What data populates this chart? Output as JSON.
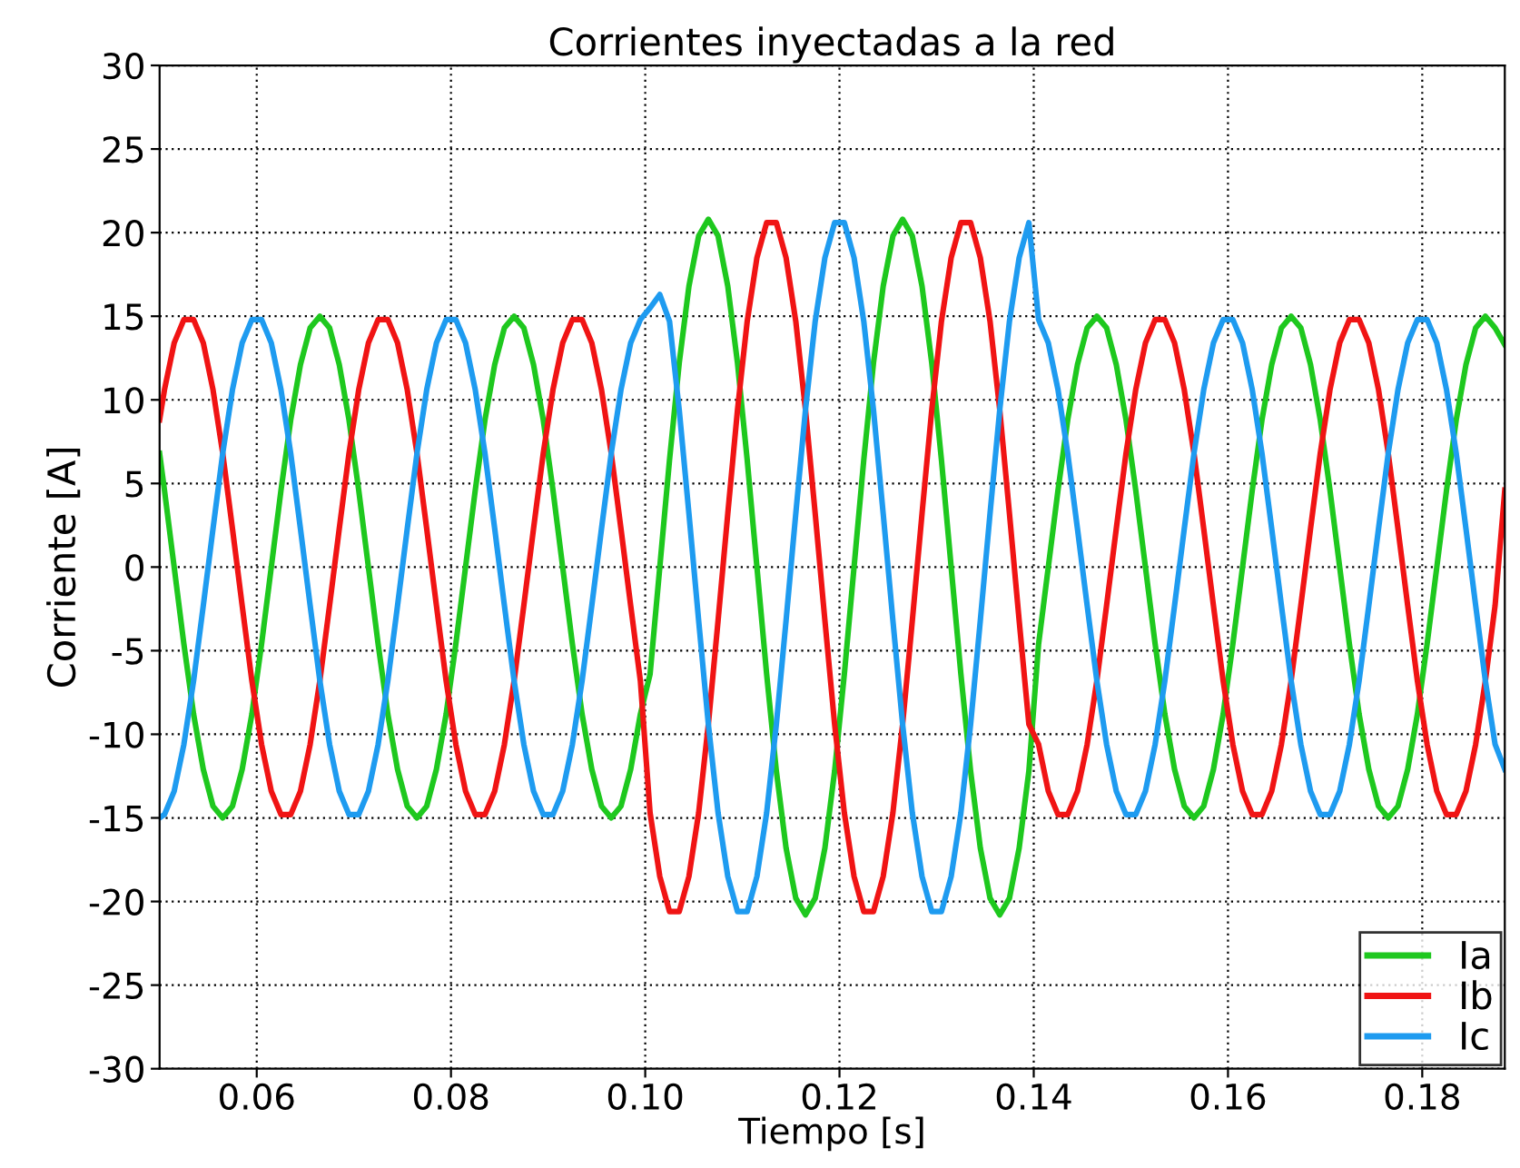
{
  "chart_data": {
    "type": "line",
    "title": "Corrientes inyectadas a la red",
    "xlabel": "Tiempo [s]",
    "ylabel": "Corriente [A]",
    "xlim": [
      0.05,
      0.1885
    ],
    "xticks": [
      0.06,
      0.08,
      {
        "value": 0.1,
        "label": "0.10"
      },
      0.12,
      0.14,
      0.16,
      0.18
    ],
    "ylim": [
      -30,
      30
    ],
    "yticks": [
      -30,
      -25,
      -20,
      -15,
      -10,
      -5,
      0,
      5,
      10,
      15,
      20,
      25,
      30
    ],
    "grid": true,
    "legend": "bottom right",
    "line_style": "solid",
    "marker": "none",
    "x": [
      0.05,
      0.0505,
      0.0515,
      0.0525,
      0.0535,
      0.0545,
      0.0555,
      0.0565,
      0.0575,
      0.0585,
      0.0595,
      0.0605,
      0.0615,
      0.0625,
      0.0635,
      0.0645,
      0.0655,
      0.0665,
      0.0675,
      0.0685,
      0.0695,
      0.0705,
      0.0715,
      0.0725,
      0.0735,
      0.0745,
      0.0755,
      0.0765,
      0.0775,
      0.0785,
      0.0795,
      0.0805,
      0.0815,
      0.0825,
      0.0835,
      0.0845,
      0.0855,
      0.0865,
      0.0875,
      0.0885,
      0.0895,
      0.0905,
      0.0915,
      0.0925,
      0.0935,
      0.0945,
      0.0955,
      0.0965,
      0.0975,
      0.0985,
      0.0995,
      0.1005,
      0.1015,
      0.1025,
      0.1035,
      0.1045,
      0.1055,
      0.1065,
      0.1075,
      0.1085,
      0.1095,
      0.1105,
      0.1115,
      0.1125,
      0.1135,
      0.1145,
      0.1155,
      0.1165,
      0.1175,
      0.1185,
      0.1195,
      0.1205,
      0.1215,
      0.1225,
      0.1235,
      0.1245,
      0.1255,
      0.1265,
      0.1275,
      0.1285,
      0.1295,
      0.1305,
      0.1315,
      0.1325,
      0.1335,
      0.1345,
      0.1355,
      0.1365,
      0.1375,
      0.1385,
      0.1395,
      0.1405,
      0.1415,
      0.1425,
      0.1435,
      0.1445,
      0.1455,
      0.1465,
      0.1475,
      0.1485,
      0.1495,
      0.1505,
      0.1515,
      0.1525,
      0.1535,
      0.1545,
      0.1555,
      0.1565,
      0.1575,
      0.1585,
      0.1595,
      0.1605,
      0.1615,
      0.1625,
      0.1635,
      0.1645,
      0.1655,
      0.1665,
      0.1675,
      0.1685,
      0.1695,
      0.1705,
      0.1715,
      0.1725,
      0.1735,
      0.1745,
      0.1755,
      0.1765,
      0.1775,
      0.1785,
      0.1795,
      0.1805,
      0.1815,
      0.1825,
      0.1835,
      0.1845,
      0.1855,
      0.1865,
      0.1875,
      0.1885
    ],
    "series": [
      {
        "name": "Ia",
        "color": "#1ec81e",
        "values": [
          6.8,
          4.6,
          0,
          -4.6,
          -8.8,
          -12.1,
          -14.3,
          -15,
          -14.3,
          -12.1,
          -8.8,
          -4.6,
          0,
          4.6,
          8.8,
          12.1,
          14.3,
          15,
          14.3,
          12.1,
          8.8,
          4.6,
          0,
          -4.6,
          -8.8,
          -12.1,
          -14.3,
          -15,
          -14.3,
          -12.1,
          -8.8,
          -4.6,
          0,
          4.6,
          8.8,
          12.1,
          14.3,
          15,
          14.3,
          12.1,
          8.8,
          4.6,
          0,
          -4.6,
          -8.8,
          -12.1,
          -14.3,
          -15,
          -14.3,
          -12.1,
          -8.8,
          -6.4,
          0,
          6.4,
          12.2,
          16.8,
          19.8,
          20.8,
          19.8,
          16.8,
          12.2,
          6.4,
          0,
          -6.4,
          -12.2,
          -16.8,
          -19.8,
          -20.8,
          -19.8,
          -16.8,
          -12.2,
          -6.4,
          0,
          6.4,
          12.2,
          16.8,
          19.8,
          20.8,
          19.8,
          16.8,
          12.2,
          6.4,
          0,
          -6.4,
          -12.2,
          -16.8,
          -19.8,
          -20.8,
          -19.8,
          -16.8,
          -12.2,
          -4.6,
          0,
          4.6,
          8.8,
          12.1,
          14.3,
          15,
          14.3,
          12.1,
          8.8,
          4.6,
          0,
          -4.6,
          -8.8,
          -12.1,
          -14.3,
          -15,
          -14.3,
          -12.1,
          -8.8,
          -4.6,
          0,
          4.6,
          8.8,
          12.1,
          14.3,
          15,
          14.3,
          12.1,
          8.8,
          4.6,
          0,
          -4.6,
          -8.8,
          -12.1,
          -14.3,
          -15,
          -14.3,
          -12.1,
          -8.8,
          -4.6,
          0,
          4.6,
          8.8,
          12.1,
          14.3,
          15,
          14.3,
          13.3
        ]
      },
      {
        "name": "Ib",
        "color": "#f01414",
        "values": [
          8.8,
          10.6,
          13.4,
          14.8,
          14.8,
          13.4,
          10.6,
          6.8,
          2.3,
          -2.3,
          -6.8,
          -10.6,
          -13.4,
          -14.8,
          -14.8,
          -13.4,
          -10.6,
          -6.8,
          -2.3,
          2.3,
          6.8,
          10.6,
          13.4,
          14.8,
          14.8,
          13.4,
          10.6,
          6.8,
          2.3,
          -2.3,
          -6.8,
          -10.6,
          -13.4,
          -14.8,
          -14.8,
          -13.4,
          -10.6,
          -6.8,
          -2.3,
          2.3,
          6.8,
          10.6,
          13.4,
          14.8,
          14.8,
          13.4,
          10.6,
          6.8,
          2.3,
          -2.3,
          -6.8,
          -14.7,
          -18.5,
          -20.6,
          -20.6,
          -18.5,
          -14.7,
          -9.4,
          -3.2,
          3.2,
          9.4,
          14.7,
          18.5,
          20.6,
          20.6,
          18.5,
          14.7,
          9.4,
          3.2,
          -3.2,
          -9.4,
          -14.7,
          -18.5,
          -20.6,
          -20.6,
          -18.5,
          -14.7,
          -9.4,
          -3.2,
          3.2,
          9.4,
          14.7,
          18.5,
          20.6,
          20.6,
          18.5,
          14.7,
          9.4,
          3.2,
          -3.2,
          -9.4,
          -10.6,
          -13.4,
          -14.8,
          -14.8,
          -13.4,
          -10.6,
          -6.8,
          -2.3,
          2.3,
          6.8,
          10.6,
          13.4,
          14.8,
          14.8,
          13.4,
          10.6,
          6.8,
          2.3,
          -2.3,
          -6.8,
          -10.6,
          -13.4,
          -14.8,
          -14.8,
          -13.4,
          -10.6,
          -6.8,
          -2.3,
          2.3,
          6.8,
          10.6,
          13.4,
          14.8,
          14.8,
          13.4,
          10.6,
          6.8,
          2.3,
          -2.3,
          -6.8,
          -10.6,
          -13.4,
          -14.8,
          -14.8,
          -13.4,
          -10.6,
          -6.8,
          -2.3,
          4.6
        ]
      },
      {
        "name": "Ic",
        "color": "#1e9bf0",
        "values": [
          -15,
          -14.8,
          -13.4,
          -10.6,
          -6.8,
          -2.3,
          2.3,
          6.8,
          10.6,
          13.4,
          14.8,
          14.8,
          13.4,
          10.6,
          6.8,
          2.3,
          -2.3,
          -6.8,
          -10.6,
          -13.4,
          -14.8,
          -14.8,
          -13.4,
          -10.6,
          -6.8,
          -2.3,
          2.3,
          6.8,
          10.6,
          13.4,
          14.8,
          14.8,
          13.4,
          10.6,
          6.8,
          2.3,
          -2.3,
          -6.8,
          -10.6,
          -13.4,
          -14.8,
          -14.8,
          -13.4,
          -10.6,
          -6.8,
          -2.3,
          2.3,
          6.8,
          10.6,
          13.4,
          14.8,
          15.5,
          16.3,
          14.7,
          9.4,
          3.2,
          -3.2,
          -9.4,
          -14.7,
          -18.5,
          -20.6,
          -20.6,
          -18.5,
          -14.7,
          -9.4,
          -3.2,
          3.2,
          9.4,
          14.7,
          18.5,
          20.6,
          20.6,
          18.5,
          14.7,
          9.4,
          3.2,
          -3.2,
          -9.4,
          -14.7,
          -18.5,
          -20.6,
          -20.6,
          -18.5,
          -14.7,
          -9.4,
          -3.2,
          3.2,
          9.4,
          14.7,
          18.5,
          20.6,
          14.8,
          13.4,
          10.6,
          6.8,
          2.3,
          -2.3,
          -6.8,
          -10.6,
          -13.4,
          -14.8,
          -14.8,
          -13.4,
          -10.6,
          -6.8,
          -2.3,
          2.3,
          6.8,
          10.6,
          13.4,
          14.8,
          14.8,
          13.4,
          10.6,
          6.8,
          2.3,
          -2.3,
          -6.8,
          -10.6,
          -13.4,
          -14.8,
          -14.8,
          -13.4,
          -10.6,
          -6.8,
          -2.3,
          2.3,
          6.8,
          10.6,
          13.4,
          14.8,
          14.8,
          13.4,
          10.6,
          6.8,
          2.3,
          -2.3,
          -6.8,
          -10.6,
          -12.1
        ]
      }
    ]
  }
}
